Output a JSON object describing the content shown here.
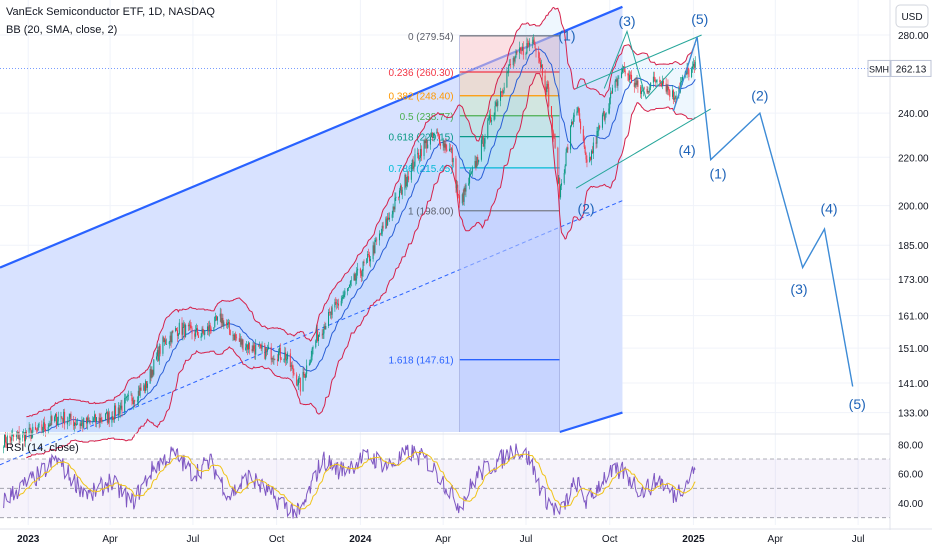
{
  "header": {
    "symbol_line": "VanEck Semiconductor ETF, 1D, NASDAQ",
    "indicator_line": "BB (20, SMA, close, 2)"
  },
  "rsi_legend": "RSI (14, close)",
  "currency_label": "USD",
  "price_tag": {
    "symbol": "SMH",
    "value": "262.13"
  },
  "colors": {
    "channel_fill": "#d6e0ff",
    "channel_line": "#2962ff",
    "bb_band": "#d5224b",
    "bb_basis": "#2a5fd6",
    "wave_line": "#3d8bd6",
    "rsi_line": "#7e57c2",
    "rsi_ma": "#f0c419",
    "candle_up": "#089981",
    "candle_down": "#f23645"
  },
  "chart_data": [
    {
      "type": "candlestick",
      "title": "VanEck Semiconductor ETF, 1D, NASDAQ",
      "y_scale": "log",
      "ylim": [
        128,
        300
      ],
      "y_ticks": [
        280.0,
        240.0,
        220.0,
        200.0,
        185.0,
        173.0,
        161.0,
        151.0,
        141.0,
        133.0
      ],
      "x_ticks": [
        {
          "label": "2023",
          "date": "2023-01-01"
        },
        {
          "label": "Apr",
          "date": "2023-04-01"
        },
        {
          "label": "Jul",
          "date": "2023-07-01"
        },
        {
          "label": "Oct",
          "date": "2023-10-01"
        },
        {
          "label": "2024",
          "date": "2024-01-01"
        },
        {
          "label": "Apr",
          "date": "2024-04-01"
        },
        {
          "label": "Jul",
          "date": "2024-07-01"
        },
        {
          "label": "Oct",
          "date": "2024-10-01"
        },
        {
          "label": "2025",
          "date": "2025-01-01"
        },
        {
          "label": "Apr",
          "date": "2025-04-01"
        },
        {
          "label": "Jul",
          "date": "2025-07-01"
        }
      ],
      "price_path": [
        [
          "2022-12-05",
          126
        ],
        [
          "2023-01-10",
          128
        ],
        [
          "2023-02-05",
          132
        ],
        [
          "2023-03-01",
          130
        ],
        [
          "2023-04-01",
          132
        ],
        [
          "2023-05-10",
          140
        ],
        [
          "2023-05-28",
          152
        ],
        [
          "2023-06-15",
          157
        ],
        [
          "2023-07-10",
          155
        ],
        [
          "2023-08-01",
          160
        ],
        [
          "2023-08-20",
          153
        ],
        [
          "2023-09-15",
          150
        ],
        [
          "2023-10-10",
          149
        ],
        [
          "2023-10-27",
          140
        ],
        [
          "2023-11-15",
          155
        ],
        [
          "2023-12-01",
          162
        ],
        [
          "2023-12-20",
          170
        ],
        [
          "2024-01-10",
          180
        ],
        [
          "2024-02-01",
          195
        ],
        [
          "2024-02-25",
          215
        ],
        [
          "2024-03-10",
          225
        ],
        [
          "2024-03-25",
          230
        ],
        [
          "2024-04-10",
          222
        ],
        [
          "2024-04-19",
          200
        ],
        [
          "2024-05-05",
          215
        ],
        [
          "2024-05-25",
          240
        ],
        [
          "2024-06-15",
          265
        ],
        [
          "2024-07-10",
          278
        ],
        [
          "2024-07-25",
          250
        ],
        [
          "2024-08-07",
          205
        ],
        [
          "2024-08-25",
          245
        ],
        [
          "2024-09-06",
          215
        ],
        [
          "2024-09-25",
          240
        ],
        [
          "2024-10-15",
          262
        ],
        [
          "2024-11-05",
          250
        ],
        [
          "2024-11-25",
          258
        ],
        [
          "2024-12-10",
          248
        ],
        [
          "2024-12-25",
          260
        ],
        [
          "2025-01-03",
          262.13
        ]
      ],
      "last_price": 262.13,
      "fibonacci": [
        {
          "level": "0",
          "price": 279.54
        },
        {
          "level": "0.236",
          "price": 260.3
        },
        {
          "level": "0.382",
          "price": 248.4
        },
        {
          "level": "0.5",
          "price": 238.77
        },
        {
          "level": "0.618",
          "price": 229.15
        },
        {
          "level": "0.786",
          "price": 215.45
        },
        {
          "level": "1",
          "price": 198.0
        },
        {
          "level": "1.618",
          "price": 147.61
        }
      ],
      "fib_labels": [
        "0 (279.54)",
        "0.236 (260.30)",
        "0.382 (248.40)",
        "0.5 (238.77)",
        "0.618 (229.15)",
        "0.786 (215.45)",
        "1 (198.00)",
        "1.618 (147.61)"
      ],
      "fib_range": {
        "start": "2024-04-19",
        "end": "2024-08-07"
      },
      "channel": {
        "upper": [
          [
            "2022-12-01",
            177
          ],
          [
            "2024-10-15",
            296
          ]
        ],
        "lower": [
          [
            "2024-08-07",
            128
          ],
          [
            "2024-10-15",
            133
          ]
        ],
        "mid_dashed": [
          [
            "2022-12-01",
            120
          ],
          [
            "2024-10-15",
            202
          ]
        ]
      },
      "wedge": {
        "upper": [
          [
            "2024-08-25",
            252
          ],
          [
            "2025-01-10",
            280
          ]
        ],
        "lower": [
          [
            "2024-08-25",
            207
          ],
          [
            "2025-01-20",
            242
          ]
        ]
      },
      "projection_path": [
        [
          "2024-12-10",
          241
        ],
        [
          "2025-01-05",
          279
        ],
        [
          "2025-01-20",
          219
        ],
        [
          "2025-03-15",
          240
        ],
        [
          "2025-05-01",
          177
        ],
        [
          "2025-05-25",
          191
        ],
        [
          "2025-06-25",
          140
        ]
      ],
      "wave_labels": [
        {
          "text": "(1)",
          "date": "2024-08-15",
          "price": 277
        },
        {
          "text": "(2)",
          "date": "2024-09-05",
          "price": 197
        },
        {
          "text": "(3)",
          "date": "2024-10-20",
          "price": 285
        },
        {
          "text": "(4)",
          "date": "2024-12-25",
          "price": 221
        },
        {
          "text": "(5)",
          "date": "2025-01-08",
          "price": 286
        },
        {
          "text": "(1)",
          "date": "2025-01-28",
          "price": 211
        },
        {
          "text": "(2)",
          "date": "2025-03-15",
          "price": 246
        },
        {
          "text": "(3)",
          "date": "2025-04-27",
          "price": 168
        },
        {
          "text": "(4)",
          "date": "2025-05-30",
          "price": 197
        },
        {
          "text": "(5)",
          "date": "2025-06-30",
          "price": 134
        }
      ]
    },
    {
      "type": "line",
      "title": "RSI (14, close)",
      "ylim": [
        25,
        85
      ],
      "y_ticks": [
        80.0,
        60.0,
        40.0
      ],
      "levels": [
        70,
        50,
        30
      ],
      "rsi_path": [
        [
          "2022-12-05",
          42
        ],
        [
          "2023-01-15",
          60
        ],
        [
          "2023-02-01",
          70
        ],
        [
          "2023-02-20",
          55
        ],
        [
          "2023-03-10",
          45
        ],
        [
          "2023-04-01",
          55
        ],
        [
          "2023-04-25",
          40
        ],
        [
          "2023-05-20",
          65
        ],
        [
          "2023-06-10",
          74
        ],
        [
          "2023-07-01",
          60
        ],
        [
          "2023-07-20",
          68
        ],
        [
          "2023-08-10",
          45
        ],
        [
          "2023-09-01",
          58
        ],
        [
          "2023-09-25",
          45
        ],
        [
          "2023-10-27",
          32
        ],
        [
          "2023-11-20",
          70
        ],
        [
          "2023-12-10",
          62
        ],
        [
          "2024-01-10",
          72
        ],
        [
          "2024-02-01",
          65
        ],
        [
          "2024-02-25",
          75
        ],
        [
          "2024-03-15",
          68
        ],
        [
          "2024-04-01",
          55
        ],
        [
          "2024-04-19",
          38
        ],
        [
          "2024-05-10",
          60
        ],
        [
          "2024-06-05",
          70
        ],
        [
          "2024-06-20",
          78
        ],
        [
          "2024-07-05",
          70
        ],
        [
          "2024-07-20",
          45
        ],
        [
          "2024-08-07",
          32
        ],
        [
          "2024-08-25",
          55
        ],
        [
          "2024-09-06",
          40
        ],
        [
          "2024-09-25",
          58
        ],
        [
          "2024-10-15",
          62
        ],
        [
          "2024-11-05",
          48
        ],
        [
          "2024-11-25",
          56
        ],
        [
          "2024-12-10",
          45
        ],
        [
          "2024-12-25",
          55
        ],
        [
          "2025-01-03",
          64
        ]
      ]
    }
  ]
}
